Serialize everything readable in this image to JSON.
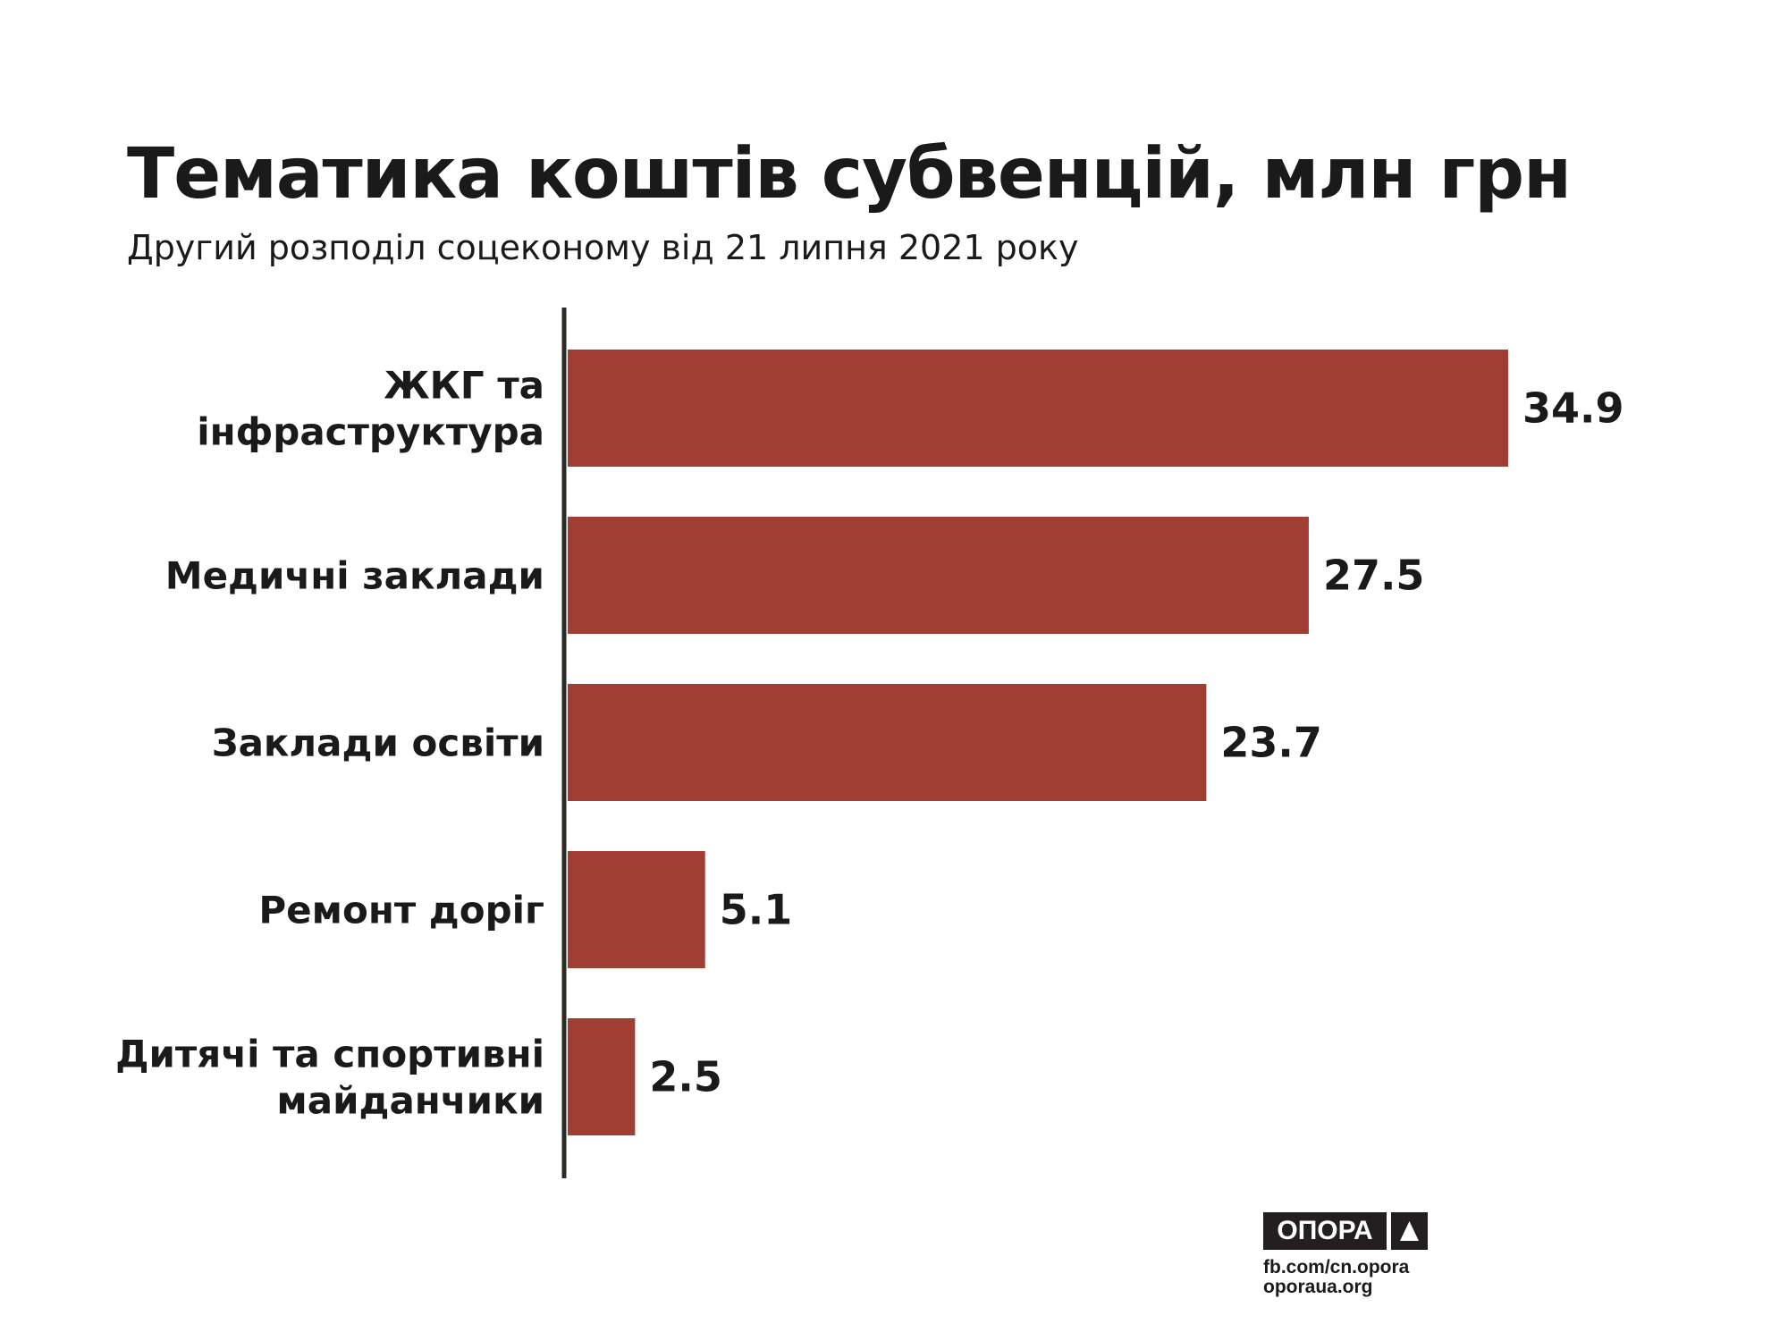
{
  "chart_data": {
    "type": "bar",
    "orientation": "horizontal",
    "title": "Тематика коштів субвенцій, млн грн",
    "subtitle": "Другий розподіл соцеконому від 21 липня 2021 року",
    "categories": [
      [
        "ЖКГ та",
        "інфраструктура"
      ],
      [
        "Медичні заклади"
      ],
      [
        "Заклади освіти"
      ],
      [
        "Ремонт доріг"
      ],
      [
        "Дитячі та спортивні",
        "майданчики"
      ]
    ],
    "values": [
      34.9,
      27.5,
      23.7,
      5.1,
      2.5
    ],
    "value_labels": [
      "34.9",
      "27.5",
      "23.7",
      "5.1",
      "2.5"
    ],
    "xlabel": "",
    "ylabel": "",
    "xlim": [
      0,
      34.9
    ],
    "grid": false,
    "bar_color": "#a03e34",
    "axis_color": "#2b2b23"
  },
  "logo": {
    "name": "ОПОРА",
    "links": [
      "fb.com/cn.opora",
      "oporaua.org"
    ]
  }
}
